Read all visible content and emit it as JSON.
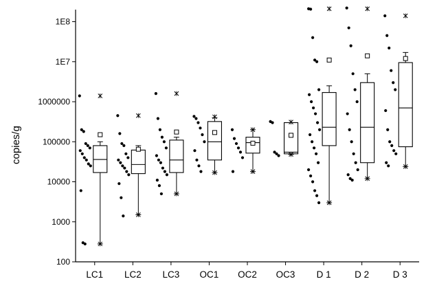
{
  "chart_data": {
    "type": "box",
    "title": "",
    "xlabel": "",
    "ylabel": "copies/g",
    "yscale": "log",
    "ylim": [
      100,
      200000000
    ],
    "yticks": [
      {
        "value": 100,
        "label": "100"
      },
      {
        "value": 1000,
        "label": "1000"
      },
      {
        "value": 10000,
        "label": "10000"
      },
      {
        "value": 100000,
        "label": "100000"
      },
      {
        "value": 1000000,
        "label": "1000000"
      },
      {
        "value": 10000000,
        "label": "1E7"
      },
      {
        "value": 100000000,
        "label": "1E8"
      }
    ],
    "categories": [
      "LC1",
      "LC2",
      "LC3",
      "OC1",
      "OC2",
      "OC3",
      "D 1",
      "D 2",
      "D 3"
    ],
    "groups": [
      {
        "name": "LC1",
        "q1": 17000,
        "median": 36000,
        "q3": 80000,
        "whisker_low": 280,
        "whisker_high": 100000,
        "mean": 150000,
        "min_marker": 280,
        "max_marker": 1400000,
        "points": [
          1400000,
          200000,
          180000,
          90000,
          80000,
          70000,
          60000,
          50000,
          40000,
          35000,
          28000,
          25000,
          6000,
          300,
          280
        ]
      },
      {
        "name": "LC2",
        "q1": 16000,
        "median": 27000,
        "q3": 62000,
        "whisker_low": 1500,
        "whisker_high": 80000,
        "mean": 65000,
        "min_marker": 1500,
        "max_marker": 450000,
        "points": [
          450000,
          160000,
          90000,
          80000,
          50000,
          40000,
          35000,
          30000,
          25000,
          22000,
          18000,
          15000,
          9000,
          4000,
          1400
        ]
      },
      {
        "name": "LC3",
        "q1": 17000,
        "median": 35000,
        "q3": 110000,
        "whisker_low": 5000,
        "whisker_high": 130000,
        "mean": 175000,
        "min_marker": 5000,
        "max_marker": 1600000,
        "points": [
          1600000,
          380000,
          200000,
          130000,
          100000,
          70000,
          45000,
          35000,
          30000,
          22000,
          18000,
          15000,
          11000,
          8000,
          5000
        ]
      },
      {
        "name": "OC1",
        "q1": 35000,
        "median": 100000,
        "q3": 320000,
        "whisker_low": 17000,
        "whisker_high": 400000,
        "mean": 170000,
        "min_marker": 17000,
        "max_marker": 420000,
        "points": [
          430000,
          380000,
          300000,
          220000,
          150000,
          100000,
          60000,
          35000,
          25000,
          18000
        ]
      },
      {
        "name": "OC2",
        "q1": 52000,
        "median": 95000,
        "q3": 130000,
        "whisker_low": 18000,
        "whisker_high": 200000,
        "mean": 92000,
        "min_marker": 18000,
        "max_marker": 200000,
        "points": [
          200000,
          120000,
          90000,
          70000,
          55000,
          40000,
          18000
        ]
      },
      {
        "name": "OC3",
        "q1": 50000,
        "median": 55000,
        "q3": 300000,
        "whisker_low": 48000,
        "whisker_high": 300000,
        "mean": 145000,
        "min_marker": 48000,
        "max_marker": 310000,
        "points": [
          320000,
          300000,
          55000,
          50000,
          45000
        ]
      },
      {
        "name": "D 1",
        "q1": 80000,
        "median": 230000,
        "q3": 1700000,
        "whisker_low": 3000,
        "whisker_high": 2500000,
        "mean": 11000000,
        "min_marker": 3000,
        "max_marker": 210000000,
        "points": [
          210000000,
          205000000,
          40000000,
          11000000,
          10000000,
          2000000,
          1500000,
          1000000,
          700000,
          500000,
          300000,
          200000,
          150000,
          100000,
          70000,
          50000,
          30000,
          20000,
          14000,
          10000,
          6000,
          4500,
          3000
        ]
      },
      {
        "name": "D 2",
        "q1": 30000,
        "median": 230000,
        "q3": 3000000,
        "whisker_low": 12000,
        "whisker_high": 5000000,
        "mean": 14000000,
        "min_marker": 12000,
        "max_marker": 210000000,
        "points": [
          220000000,
          70000000,
          25000000,
          5000000,
          2000000,
          1000000,
          500000,
          200000,
          100000,
          50000,
          30000,
          20000,
          15000,
          12000,
          11000
        ]
      },
      {
        "name": "D 3",
        "q1": 75000,
        "median": 700000,
        "q3": 9500000,
        "whisker_low": 24000,
        "whisker_high": 17000000,
        "mean": 12000000,
        "min_marker": 24000,
        "max_marker": 140000000,
        "points": [
          140000000,
          45000000,
          22000000,
          6000000,
          3000000,
          2000000,
          600000,
          200000,
          100000,
          80000,
          60000,
          50000,
          30000,
          25000
        ]
      }
    ],
    "legend": "none",
    "grid": false
  }
}
